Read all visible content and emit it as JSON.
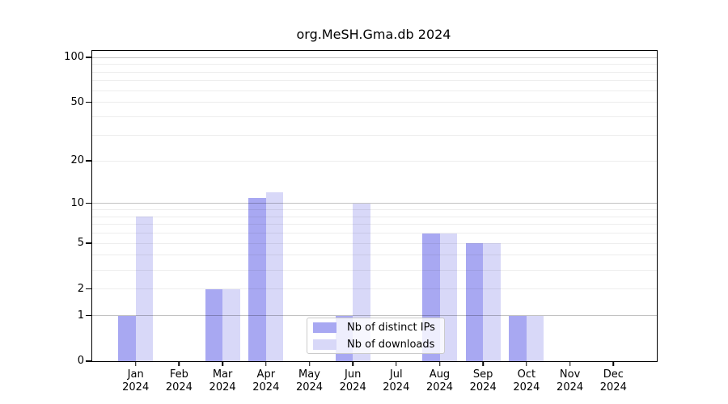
{
  "chart_data": {
    "type": "bar",
    "title": "org.MeSH.Gma.db 2024",
    "categories": [
      "Jan",
      "Feb",
      "Mar",
      "Apr",
      "May",
      "Jun",
      "Jul",
      "Aug",
      "Sep",
      "Oct",
      "Nov",
      "Dec"
    ],
    "year_label": "2024",
    "series": [
      {
        "name": "Nb of distinct IPs",
        "color": "#a8a8f2",
        "values": [
          1,
          0,
          2,
          11,
          0,
          1,
          0,
          6,
          5,
          1,
          0,
          0
        ]
      },
      {
        "name": "Nb of downloads",
        "color": "#d8d8f8",
        "values": [
          8,
          0,
          2,
          12,
          0,
          10,
          0,
          6,
          5,
          1,
          0,
          0
        ]
      }
    ],
    "y_axis": {
      "scale": "log1p",
      "tick_values": [
        0,
        1,
        2,
        5,
        10,
        20,
        50,
        100
      ],
      "major_grid_values": [
        1,
        10,
        100
      ],
      "minor_grid_values": [
        2,
        3,
        4,
        5,
        6,
        7,
        8,
        9,
        20,
        30,
        40,
        50,
        60,
        70,
        80,
        90
      ],
      "ylim": [
        0,
        111
      ]
    },
    "x_axis": {
      "label_lines": 2
    },
    "legend_position": "lower center",
    "grid": true
  },
  "colors": {
    "major_grid": "rgba(0,0,0,0.24)",
    "minor_grid": "rgba(0,0,0,0.07)",
    "axis": "#000000"
  }
}
